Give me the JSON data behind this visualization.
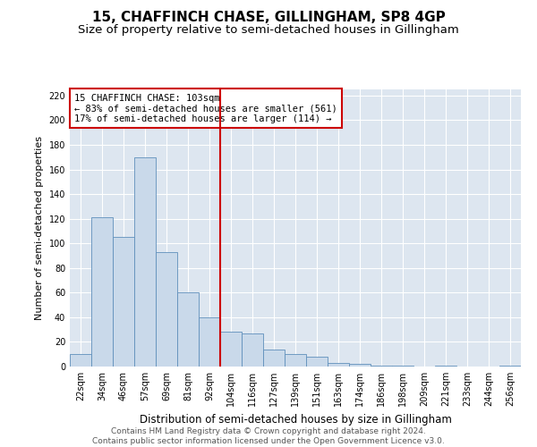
{
  "title": "15, CHAFFINCH CHASE, GILLINGHAM, SP8 4GP",
  "subtitle": "Size of property relative to semi-detached houses in Gillingham",
  "xlabel": "Distribution of semi-detached houses by size in Gillingham",
  "ylabel": "Number of semi-detached properties",
  "categories": [
    "22sqm",
    "34sqm",
    "46sqm",
    "57sqm",
    "69sqm",
    "81sqm",
    "92sqm",
    "104sqm",
    "116sqm",
    "127sqm",
    "139sqm",
    "151sqm",
    "163sqm",
    "174sqm",
    "186sqm",
    "198sqm",
    "209sqm",
    "221sqm",
    "233sqm",
    "244sqm",
    "256sqm"
  ],
  "values": [
    10,
    121,
    105,
    170,
    93,
    60,
    40,
    28,
    27,
    14,
    10,
    8,
    3,
    2,
    1,
    1,
    0,
    1,
    0,
    0,
    1
  ],
  "bar_color": "#c9d9ea",
  "bar_edge_color": "#6090bb",
  "background_color": "#dde6f0",
  "grid_color": "#ffffff",
  "vline_color": "#cc0000",
  "annotation_text": "15 CHAFFINCH CHASE: 103sqm\n← 83% of semi-detached houses are smaller (561)\n17% of semi-detached houses are larger (114) →",
  "annotation_box_color": "#ffffff",
  "annotation_box_edge_color": "#cc0000",
  "ylim": [
    0,
    225
  ],
  "yticks": [
    0,
    20,
    40,
    60,
    80,
    100,
    120,
    140,
    160,
    180,
    200,
    220
  ],
  "footer": "Contains HM Land Registry data © Crown copyright and database right 2024.\nContains public sector information licensed under the Open Government Licence v3.0.",
  "title_fontsize": 11,
  "subtitle_fontsize": 9.5,
  "xlabel_fontsize": 8.5,
  "ylabel_fontsize": 8,
  "tick_fontsize": 7,
  "annotation_fontsize": 7.5,
  "footer_fontsize": 6.5
}
